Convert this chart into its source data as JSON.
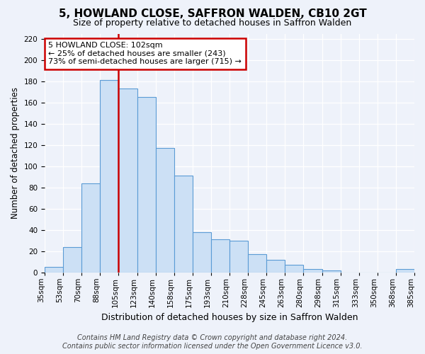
{
  "title": "5, HOWLAND CLOSE, SAFFRON WALDEN, CB10 2GT",
  "subtitle": "Size of property relative to detached houses in Saffron Walden",
  "xlabel": "Distribution of detached houses by size in Saffron Walden",
  "ylabel": "Number of detached properties",
  "categories": [
    "35sqm",
    "53sqm",
    "70sqm",
    "88sqm",
    "105sqm",
    "123sqm",
    "140sqm",
    "158sqm",
    "175sqm",
    "193sqm",
    "210sqm",
    "228sqm",
    "245sqm",
    "263sqm",
    "280sqm",
    "298sqm",
    "315sqm",
    "333sqm",
    "350sqm",
    "368sqm",
    "385sqm"
  ],
  "values": [
    5,
    24,
    84,
    181,
    173,
    165,
    117,
    91,
    38,
    31,
    30,
    17,
    12,
    7,
    3,
    2,
    0,
    0,
    0,
    3,
    0
  ],
  "bar_color": "#cce0f5",
  "bar_edge_color": "#5b9bd5",
  "vline_color": "#cc0000",
  "vline_bar_index": 4,
  "annotation_text": "5 HOWLAND CLOSE: 102sqm\n← 25% of detached houses are smaller (243)\n73% of semi-detached houses are larger (715) →",
  "annotation_box_color": "white",
  "annotation_box_edge_color": "#cc0000",
  "ylim": [
    0,
    225
  ],
  "yticks": [
    0,
    20,
    40,
    60,
    80,
    100,
    120,
    140,
    160,
    180,
    200,
    220
  ],
  "footer_line1": "Contains HM Land Registry data © Crown copyright and database right 2024.",
  "footer_line2": "Contains public sector information licensed under the Open Government Licence v3.0.",
  "title_fontsize": 11,
  "subtitle_fontsize": 9,
  "xlabel_fontsize": 9,
  "ylabel_fontsize": 8.5,
  "tick_fontsize": 7.5,
  "annotation_fontsize": 8,
  "footer_fontsize": 7,
  "background_color": "#eef2fa"
}
